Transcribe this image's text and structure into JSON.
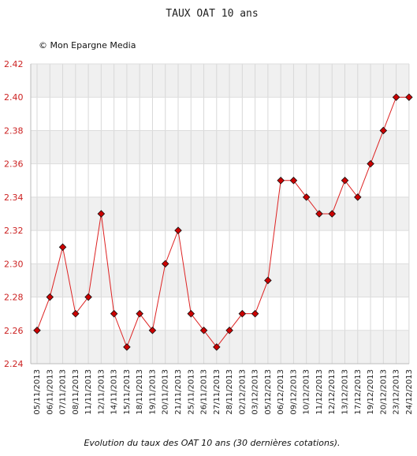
{
  "chart_data": {
    "type": "line",
    "title": "TAUX OAT 10 ans",
    "copyright": "© Mon Epargne Media",
    "caption": "Evolution du taux des OAT 10 ans (30 dernières cotations).",
    "xlabel": "",
    "ylabel": "",
    "ylim": [
      2.24,
      2.42
    ],
    "yticks": [
      "2.24",
      "2.26",
      "2.28",
      "2.30",
      "2.32",
      "2.34",
      "2.36",
      "2.38",
      "2.40",
      "2.42"
    ],
    "grid": true,
    "line_color": "#dd2222",
    "marker_color": "#cc0000",
    "tick_color": "#cc2222",
    "band_color": "#f0f0f0",
    "series": [
      {
        "name": "",
        "x": [
          "05/11/2013",
          "06/11/2013",
          "07/11/2013",
          "08/11/2013",
          "11/11/2013",
          "12/11/2013",
          "14/11/2013",
          "15/11/2013",
          "18/11/2013",
          "19/11/2013",
          "20/11/2013",
          "21/11/2013",
          "25/11/2013",
          "26/11/2013",
          "27/11/2013",
          "28/11/2013",
          "02/12/2013",
          "03/12/2013",
          "05/12/2013",
          "06/12/2013",
          "09/12/2013",
          "10/12/2013",
          "11/12/2013",
          "12/12/2013",
          "13/12/2013",
          "17/12/2013",
          "19/12/2013",
          "20/12/2013",
          "23/12/2013",
          "24/12/2013"
        ],
        "values": [
          2.26,
          2.28,
          2.31,
          2.27,
          2.28,
          2.33,
          2.27,
          2.25,
          2.27,
          2.26,
          2.3,
          2.32,
          2.27,
          2.26,
          2.25,
          2.26,
          2.27,
          2.27,
          2.29,
          2.35,
          2.35,
          2.34,
          2.33,
          2.33,
          2.35,
          2.34,
          2.36,
          2.38,
          2.4,
          2.4
        ]
      }
    ]
  }
}
